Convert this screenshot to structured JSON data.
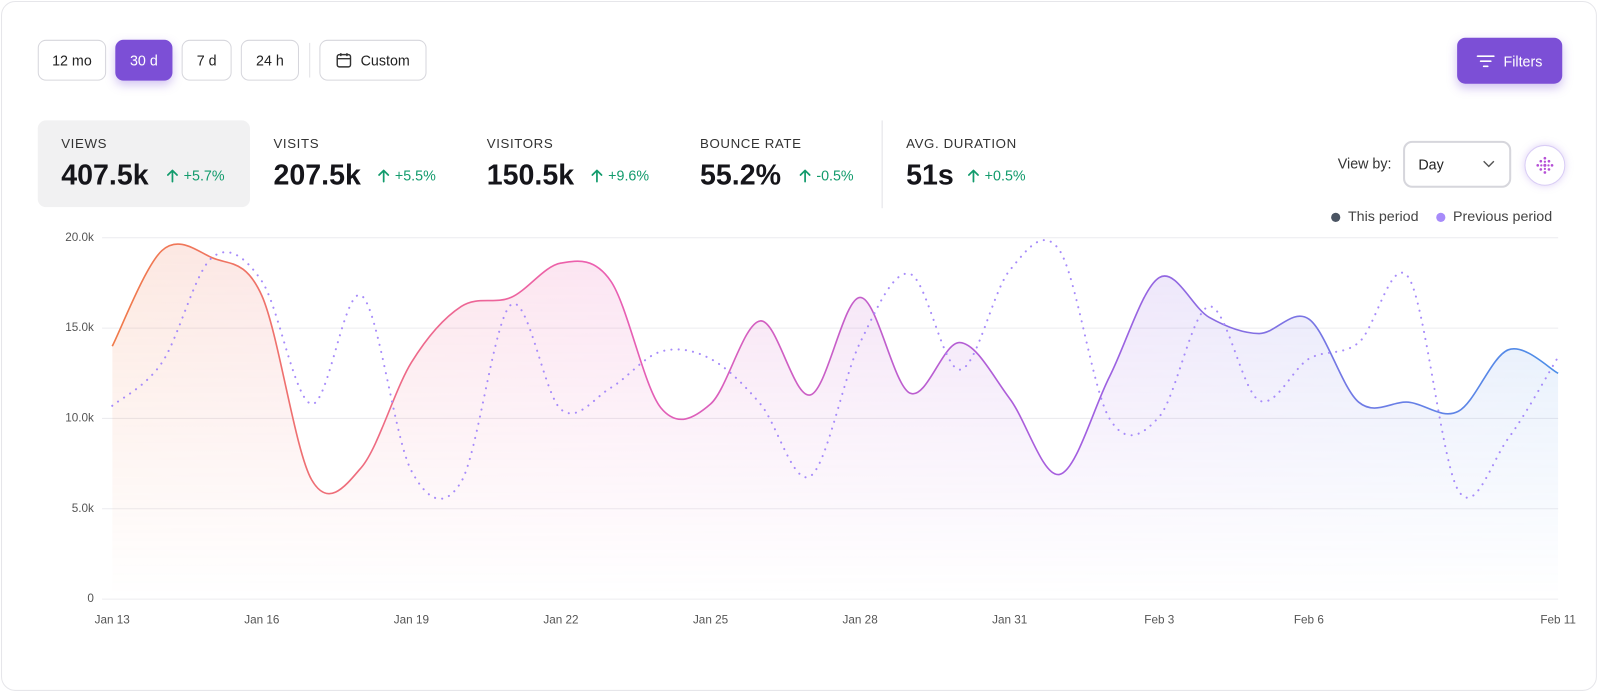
{
  "toolbar": {
    "ranges": [
      {
        "label": "12 mo"
      },
      {
        "label": "30 d",
        "active": true
      },
      {
        "label": "7 d"
      },
      {
        "label": "24 h"
      }
    ],
    "custom": "Custom",
    "filters": "Filters"
  },
  "stats": [
    {
      "label": "VIEWS",
      "value": "407.5k",
      "change": "+5.7%",
      "selected": true
    },
    {
      "label": "VISITS",
      "value": "207.5k",
      "change": "+5.5%"
    },
    {
      "label": "VISITORS",
      "value": "150.5k",
      "change": "+9.6%"
    },
    {
      "label": "BOUNCE RATE",
      "value": "55.2%",
      "change": "-0.5%"
    },
    {
      "label": "AVG. DURATION",
      "value": "51s",
      "change": "+0.5%"
    }
  ],
  "view_by": {
    "label": "View by:",
    "value": "Day"
  },
  "chart_data": {
    "type": "line",
    "categories": [
      "Jan 13",
      null,
      null,
      "Jan 16",
      null,
      null,
      "Jan 19",
      null,
      null,
      "Jan 22",
      null,
      null,
      "Jan 25",
      null,
      null,
      "Jan 28",
      null,
      null,
      "Jan 31",
      null,
      null,
      "Feb 3",
      null,
      null,
      "Feb 6",
      null,
      null,
      null,
      null,
      "Feb 11"
    ],
    "series": [
      {
        "name": "This period",
        "color": "#4b5563",
        "gradient": [
          "#f07a4a",
          "#ec5fb0",
          "#a35ee0",
          "#4b8ee8"
        ],
        "style": "solid",
        "values": [
          14000,
          19300,
          18900,
          16800,
          6600,
          7300,
          13100,
          16200,
          16700,
          18600,
          17600,
          10600,
          10800,
          15400,
          11300,
          16700,
          11400,
          14200,
          11100,
          6900,
          12300,
          17800,
          15600,
          14700,
          15500,
          10900,
          10900,
          10400,
          13800,
          12500
        ]
      },
      {
        "name": "Previous period",
        "color": "#a78bfa",
        "style": "dotted",
        "values": [
          10700,
          13100,
          18900,
          17600,
          10800,
          16800,
          7100,
          6500,
          16300,
          10500,
          11700,
          13700,
          13300,
          10800,
          6800,
          14200,
          18000,
          12700,
          18200,
          19300,
          10000,
          10100,
          16200,
          11000,
          13300,
          14200,
          17800,
          6000,
          8900,
          13400
        ]
      }
    ],
    "ylim": [
      0,
      20000
    ],
    "yticks": [
      0,
      {
        "value": 5000,
        "label": "5.0k"
      },
      {
        "value": 10000,
        "label": "10.0k"
      },
      {
        "value": 15000,
        "label": "15.0k"
      },
      {
        "value": 20000,
        "label": "20.0k"
      }
    ],
    "grid": true,
    "legend": "top-right"
  }
}
